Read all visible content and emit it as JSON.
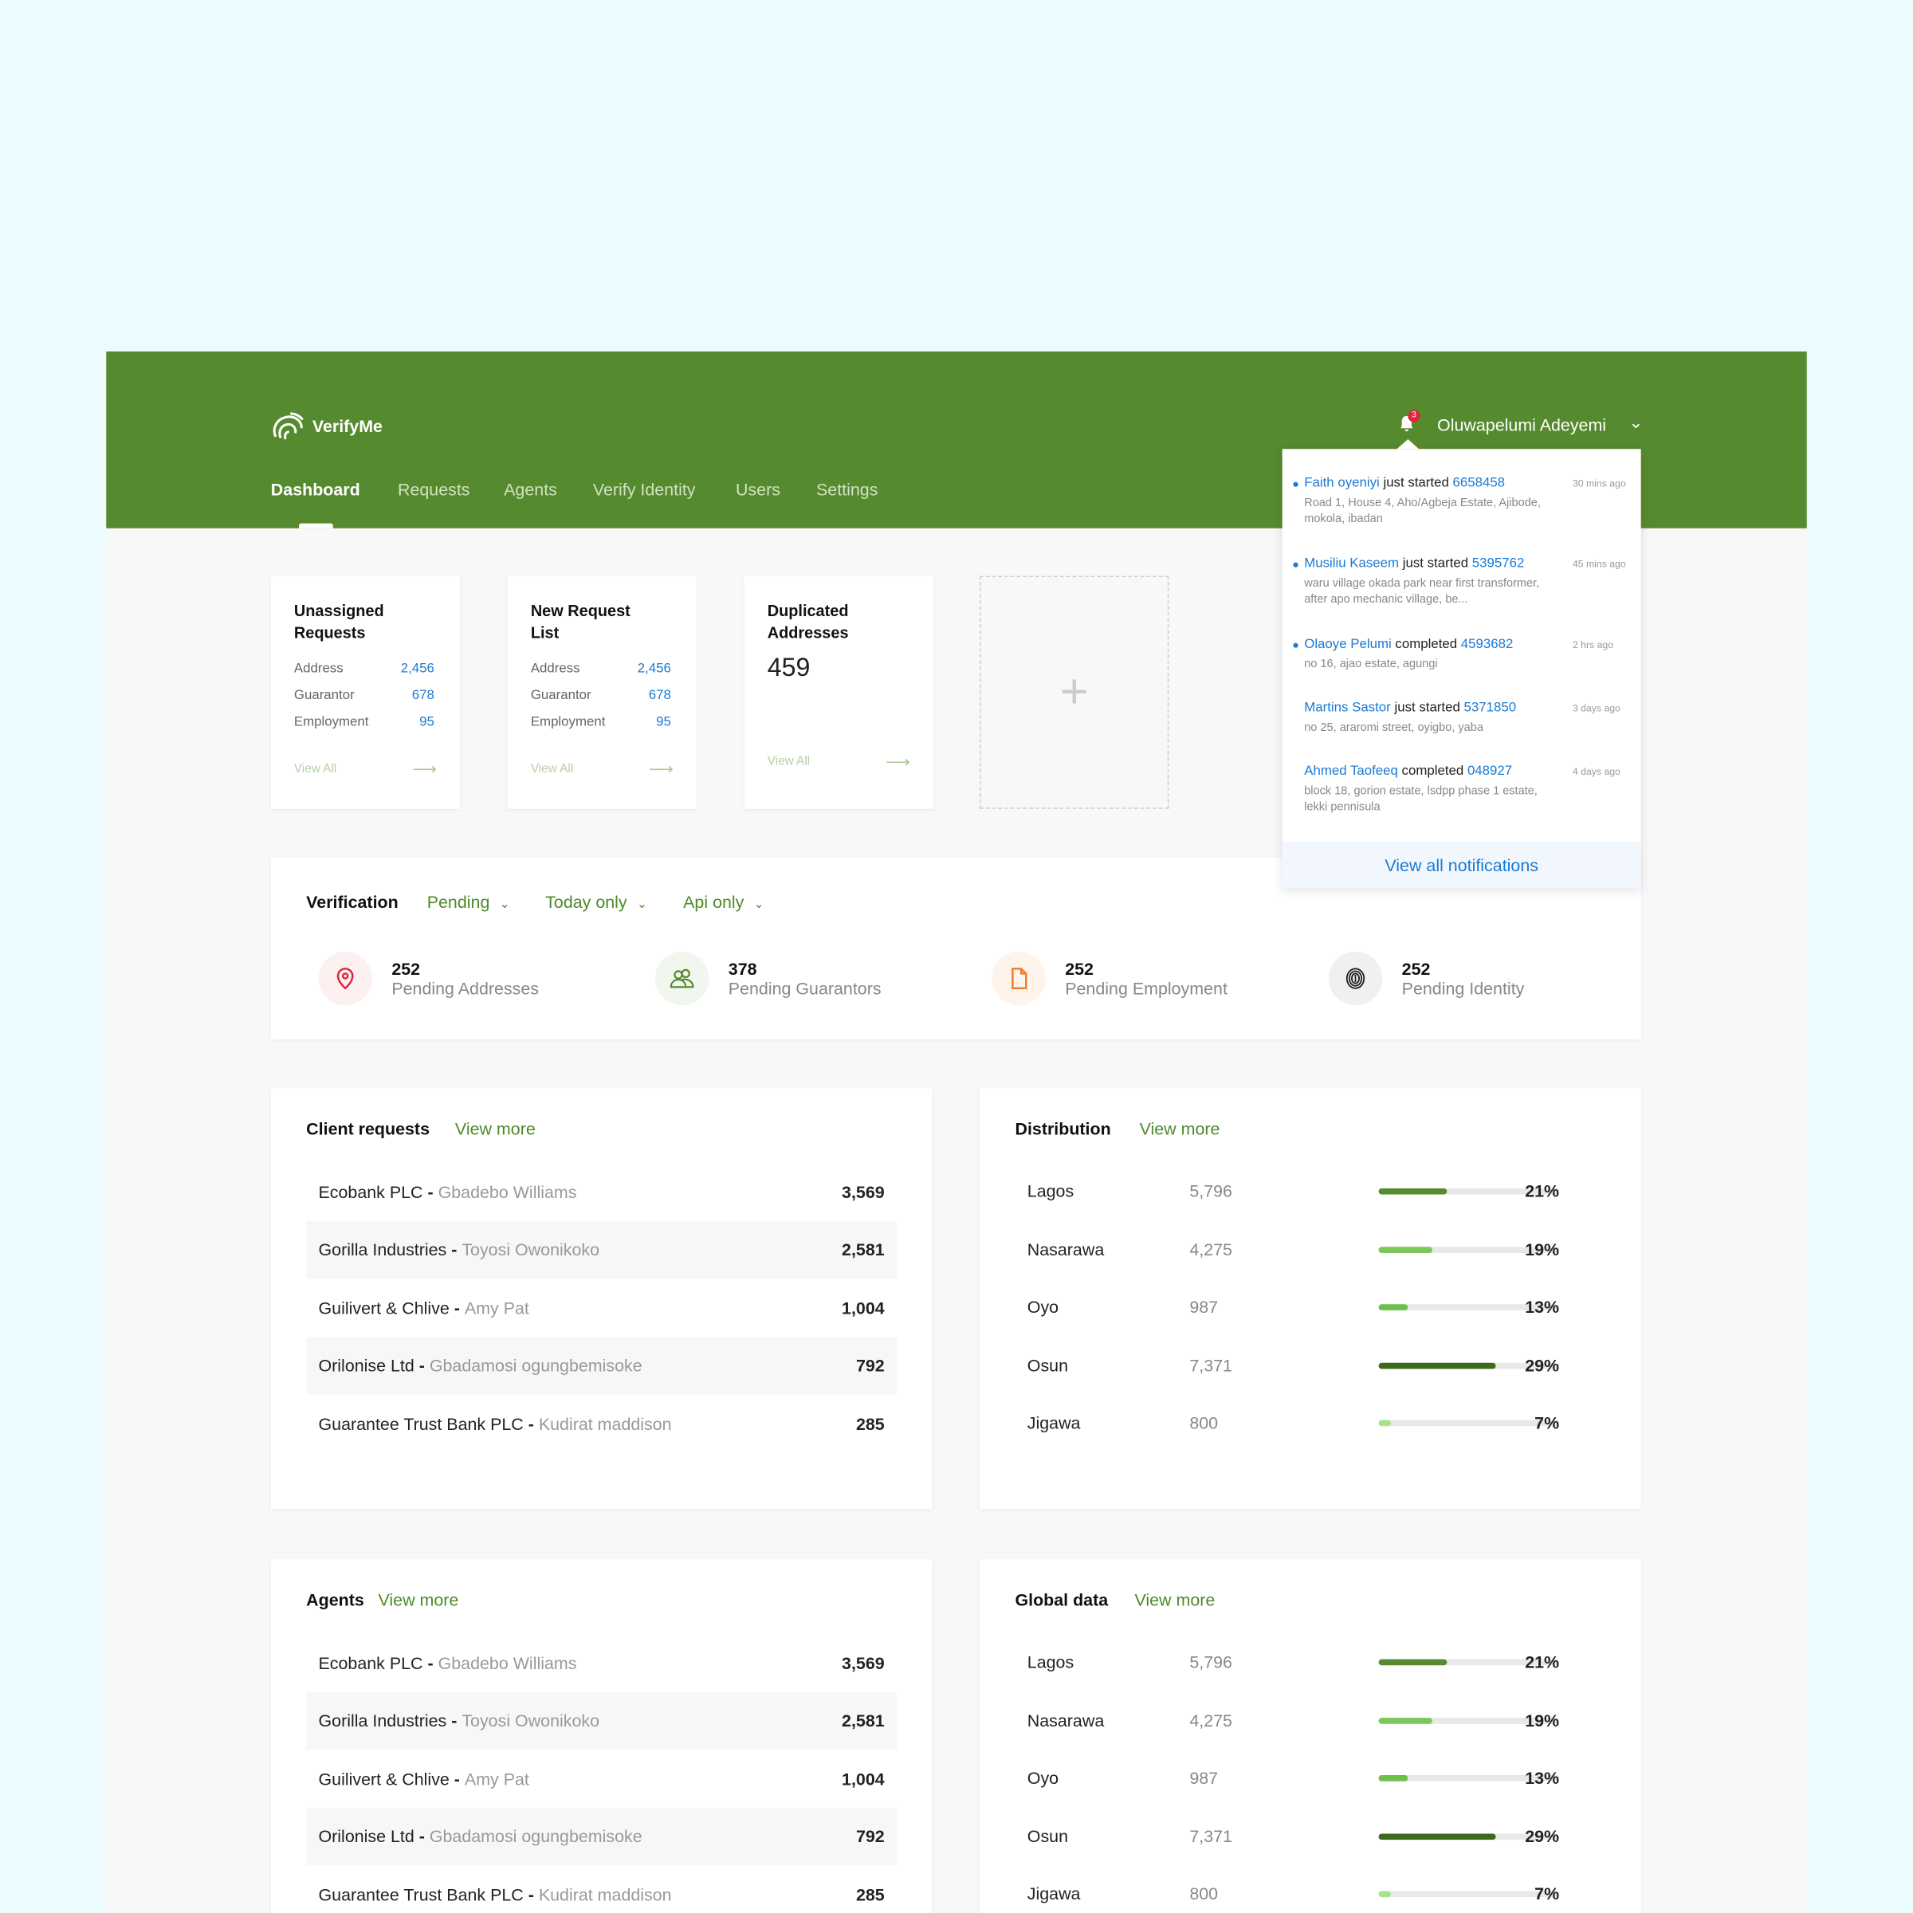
{
  "app": {
    "brand": "VerifyMe",
    "user_name": "Oluwapelumi Adeyemi",
    "notification_count": "3",
    "accent": "#568a2f"
  },
  "nav": [
    {
      "label": "Dashboard",
      "active": true
    },
    {
      "label": "Requests"
    },
    {
      "label": "Agents"
    },
    {
      "label": "Verify Identity"
    },
    {
      "label": "Users"
    },
    {
      "label": "Settings"
    }
  ],
  "cards": [
    {
      "title": "Unassigned Requests",
      "rows": [
        {
          "label": "Address",
          "value": "2,456"
        },
        {
          "label": "Guarantor",
          "value": "678"
        },
        {
          "label": "Employment",
          "value": "95"
        }
      ],
      "link": "View All"
    },
    {
      "title": "New Request List",
      "rows": [
        {
          "label": "Address",
          "value": "2,456"
        },
        {
          "label": "Guarantor",
          "value": "678"
        },
        {
          "label": "Employment",
          "value": "95"
        }
      ],
      "link": "View All"
    },
    {
      "title": "Duplicated Addresses",
      "value": "459",
      "link": "View All"
    }
  ],
  "add_card": {
    "icon": "plus-icon"
  },
  "verification": {
    "title": "Verification",
    "filters": [
      "Pending",
      "Today only",
      "Api only"
    ],
    "stats": [
      {
        "value": "252",
        "label": "Pending Addresses",
        "icon": "location-pin-icon",
        "color": "#e0233a",
        "bg": "#fdf0f1"
      },
      {
        "value": "378",
        "label": "Pending Guarantors",
        "icon": "users-icon",
        "color": "#4e8a2a",
        "bg": "#f1f6ee"
      },
      {
        "value": "252",
        "label": "Pending Employment",
        "icon": "document-icon",
        "color": "#f07b2a",
        "bg": "#fef4ec"
      },
      {
        "value": "252",
        "label": "Pending Identity",
        "icon": "fingerprint-icon",
        "color": "#222222",
        "bg": "#f0f0f0"
      }
    ]
  },
  "client_requests": {
    "title": "Client requests",
    "link": "View more",
    "rows": [
      {
        "company": "Ecobank PLC",
        "contact": "Gbadebo Williams",
        "value": "3,569"
      },
      {
        "company": "Gorilla Industries",
        "contact": "Toyosi Owonikoko",
        "value": "2,581"
      },
      {
        "company": "Guilivert & Chlive",
        "contact": "Amy Pat",
        "value": "1,004"
      },
      {
        "company": "Orilonise Ltd",
        "contact": "Gbadamosi ogungbemisoke",
        "value": "792"
      },
      {
        "company": "Guarantee Trust Bank PLC",
        "contact": "Kudirat maddison",
        "value": "285"
      }
    ]
  },
  "distribution": {
    "title": "Distribution",
    "link": "View more",
    "rows": [
      {
        "state": "Lagos",
        "count": "5,796",
        "percent": "21%",
        "fill": 38,
        "color": "#568a2f"
      },
      {
        "state": "Nasarawa",
        "count": "4,275",
        "percent": "19%",
        "fill": 30,
        "color": "#7cc75a"
      },
      {
        "state": "Oyo",
        "count": "987",
        "percent": "13%",
        "fill": 16,
        "color": "#6cc04a"
      },
      {
        "state": "Osun",
        "count": "7,371",
        "percent": "29%",
        "fill": 65,
        "color": "#3b6a1d"
      },
      {
        "state": "Jigawa",
        "count": "800",
        "percent": "7%",
        "fill": 7,
        "color": "#a6e38a"
      }
    ]
  },
  "agents": {
    "title": "Agents",
    "link": "View more",
    "rows": [
      {
        "company": "Ecobank PLC",
        "contact": "Gbadebo Williams",
        "value": "3,569"
      },
      {
        "company": "Gorilla Industries",
        "contact": "Toyosi Owonikoko",
        "value": "2,581"
      },
      {
        "company": "Guilivert & Chlive",
        "contact": "Amy Pat",
        "value": "1,004"
      },
      {
        "company": "Orilonise Ltd",
        "contact": "Gbadamosi ogungbemisoke",
        "value": "792"
      },
      {
        "company": "Guarantee Trust Bank PLC",
        "contact": "Kudirat maddison",
        "value": "285"
      }
    ]
  },
  "global_data": {
    "title": "Global data",
    "link": "View more",
    "rows": [
      {
        "state": "Lagos",
        "count": "5,796",
        "percent": "21%",
        "fill": 38,
        "color": "#568a2f"
      },
      {
        "state": "Nasarawa",
        "count": "4,275",
        "percent": "19%",
        "fill": 30,
        "color": "#7cc75a"
      },
      {
        "state": "Oyo",
        "count": "987",
        "percent": "13%",
        "fill": 16,
        "color": "#6cc04a"
      },
      {
        "state": "Osun",
        "count": "7,371",
        "percent": "29%",
        "fill": 65,
        "color": "#3b6a1d"
      },
      {
        "state": "Jigawa",
        "count": "800",
        "percent": "7%",
        "fill": 7,
        "color": "#a6e38a"
      }
    ]
  },
  "notifications": {
    "items": [
      {
        "name": "Faith oyeniyi",
        "action": "just started",
        "id": "6658458",
        "address": "Road 1, House 4, Aho/Agbeja Estate, Ajibode, mokola, ibadan",
        "time": "30 mins ago",
        "unread": true
      },
      {
        "name": "Musiliu Kaseem",
        "action": "just started",
        "id": "5395762",
        "address": "waru village okada park near first transformer, after apo mechanic village, be...",
        "time": "45 mins ago",
        "unread": true
      },
      {
        "name": "Olaoye Pelumi",
        "action": "completed",
        "id": "4593682",
        "address": "no 16, ajao estate, agungi",
        "time": "2 hrs ago",
        "unread": true
      },
      {
        "name": "Martins Sastor",
        "action": "just started",
        "id": "5371850",
        "address": "no 25, araromi street, oyigbo, yaba",
        "time": "3 days ago",
        "unread": false
      },
      {
        "name": "Ahmed Taofeeq",
        "action": "completed",
        "id": "048927",
        "address": "block 18, gorion estate, lsdpp phase 1 estate, lekki pennisula",
        "time": "4 days ago",
        "unread": false
      }
    ],
    "footer": "View all notifications"
  }
}
